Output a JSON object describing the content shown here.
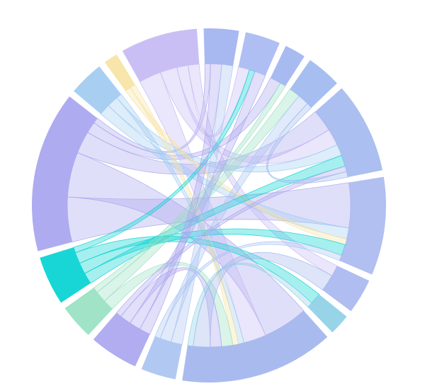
{
  "chart_data": {
    "type": "chord",
    "groups": [
      {
        "color": "#9fb0f0"
      },
      {
        "color": "#a6b8f2"
      },
      {
        "color": "#9fb4ee"
      },
      {
        "color": "#9cb8ee"
      },
      {
        "color": "#a2b8ee"
      },
      {
        "color": "#a8b8f0"
      },
      {
        "color": "#a6b6ee"
      },
      {
        "color": "#8ccfe6"
      },
      {
        "color": "#a0b4ec"
      },
      {
        "color": "#a8c2f2"
      },
      {
        "color": "#a9a4ee"
      },
      {
        "color": "#96e0c0"
      },
      {
        "color": "#00d2d2"
      },
      {
        "color": "#a6a2ee"
      },
      {
        "color": "#9ecaf0"
      },
      {
        "color": "#f6e2a0"
      },
      {
        "color": "#c4b8f4"
      }
    ],
    "links": [
      {
        "source": 13,
        "target": 5,
        "value": 8
      },
      {
        "source": 13,
        "target": 8,
        "value": 8
      },
      {
        "source": 13,
        "target": 4,
        "value": 4
      },
      {
        "source": 13,
        "target": 2,
        "value": 2
      },
      {
        "source": 13,
        "target": 0,
        "value": 1
      },
      {
        "source": 16,
        "target": 8,
        "value": 4
      },
      {
        "source": 16,
        "target": 4,
        "value": 3
      },
      {
        "source": 16,
        "target": 1,
        "value": 2
      },
      {
        "source": 16,
        "target": 6,
        "value": 2
      },
      {
        "source": 14,
        "target": 5,
        "value": 2
      },
      {
        "source": 14,
        "target": 4,
        "value": 2
      },
      {
        "source": 14,
        "target": 8,
        "value": 1
      },
      {
        "source": 15,
        "target": 5,
        "value": 1
      },
      {
        "source": 15,
        "target": 8,
        "value": 1
      },
      {
        "source": 12,
        "target": 4,
        "value": 2
      },
      {
        "source": 12,
        "target": 5,
        "value": 2
      },
      {
        "source": 12,
        "target": 7,
        "value": 2
      },
      {
        "source": 12,
        "target": 1,
        "value": 1
      },
      {
        "source": 11,
        "target": 8,
        "value": 2
      },
      {
        "source": 11,
        "target": 3,
        "value": 2
      },
      {
        "source": 11,
        "target": 2,
        "value": 1
      },
      {
        "source": 10,
        "target": 0,
        "value": 2
      },
      {
        "source": 10,
        "target": 1,
        "value": 2
      },
      {
        "source": 10,
        "target": 8,
        "value": 2
      },
      {
        "source": 10,
        "target": 4,
        "value": 1
      },
      {
        "source": 9,
        "target": 0,
        "value": 2
      },
      {
        "source": 9,
        "target": 3,
        "value": 2
      },
      {
        "source": 9,
        "target": 5,
        "value": 1
      },
      {
        "source": 8,
        "target": 6,
        "value": 3
      },
      {
        "source": 3,
        "target": 4,
        "value": 1
      },
      {
        "source": 7,
        "target": 8,
        "value": 1
      }
    ]
  }
}
